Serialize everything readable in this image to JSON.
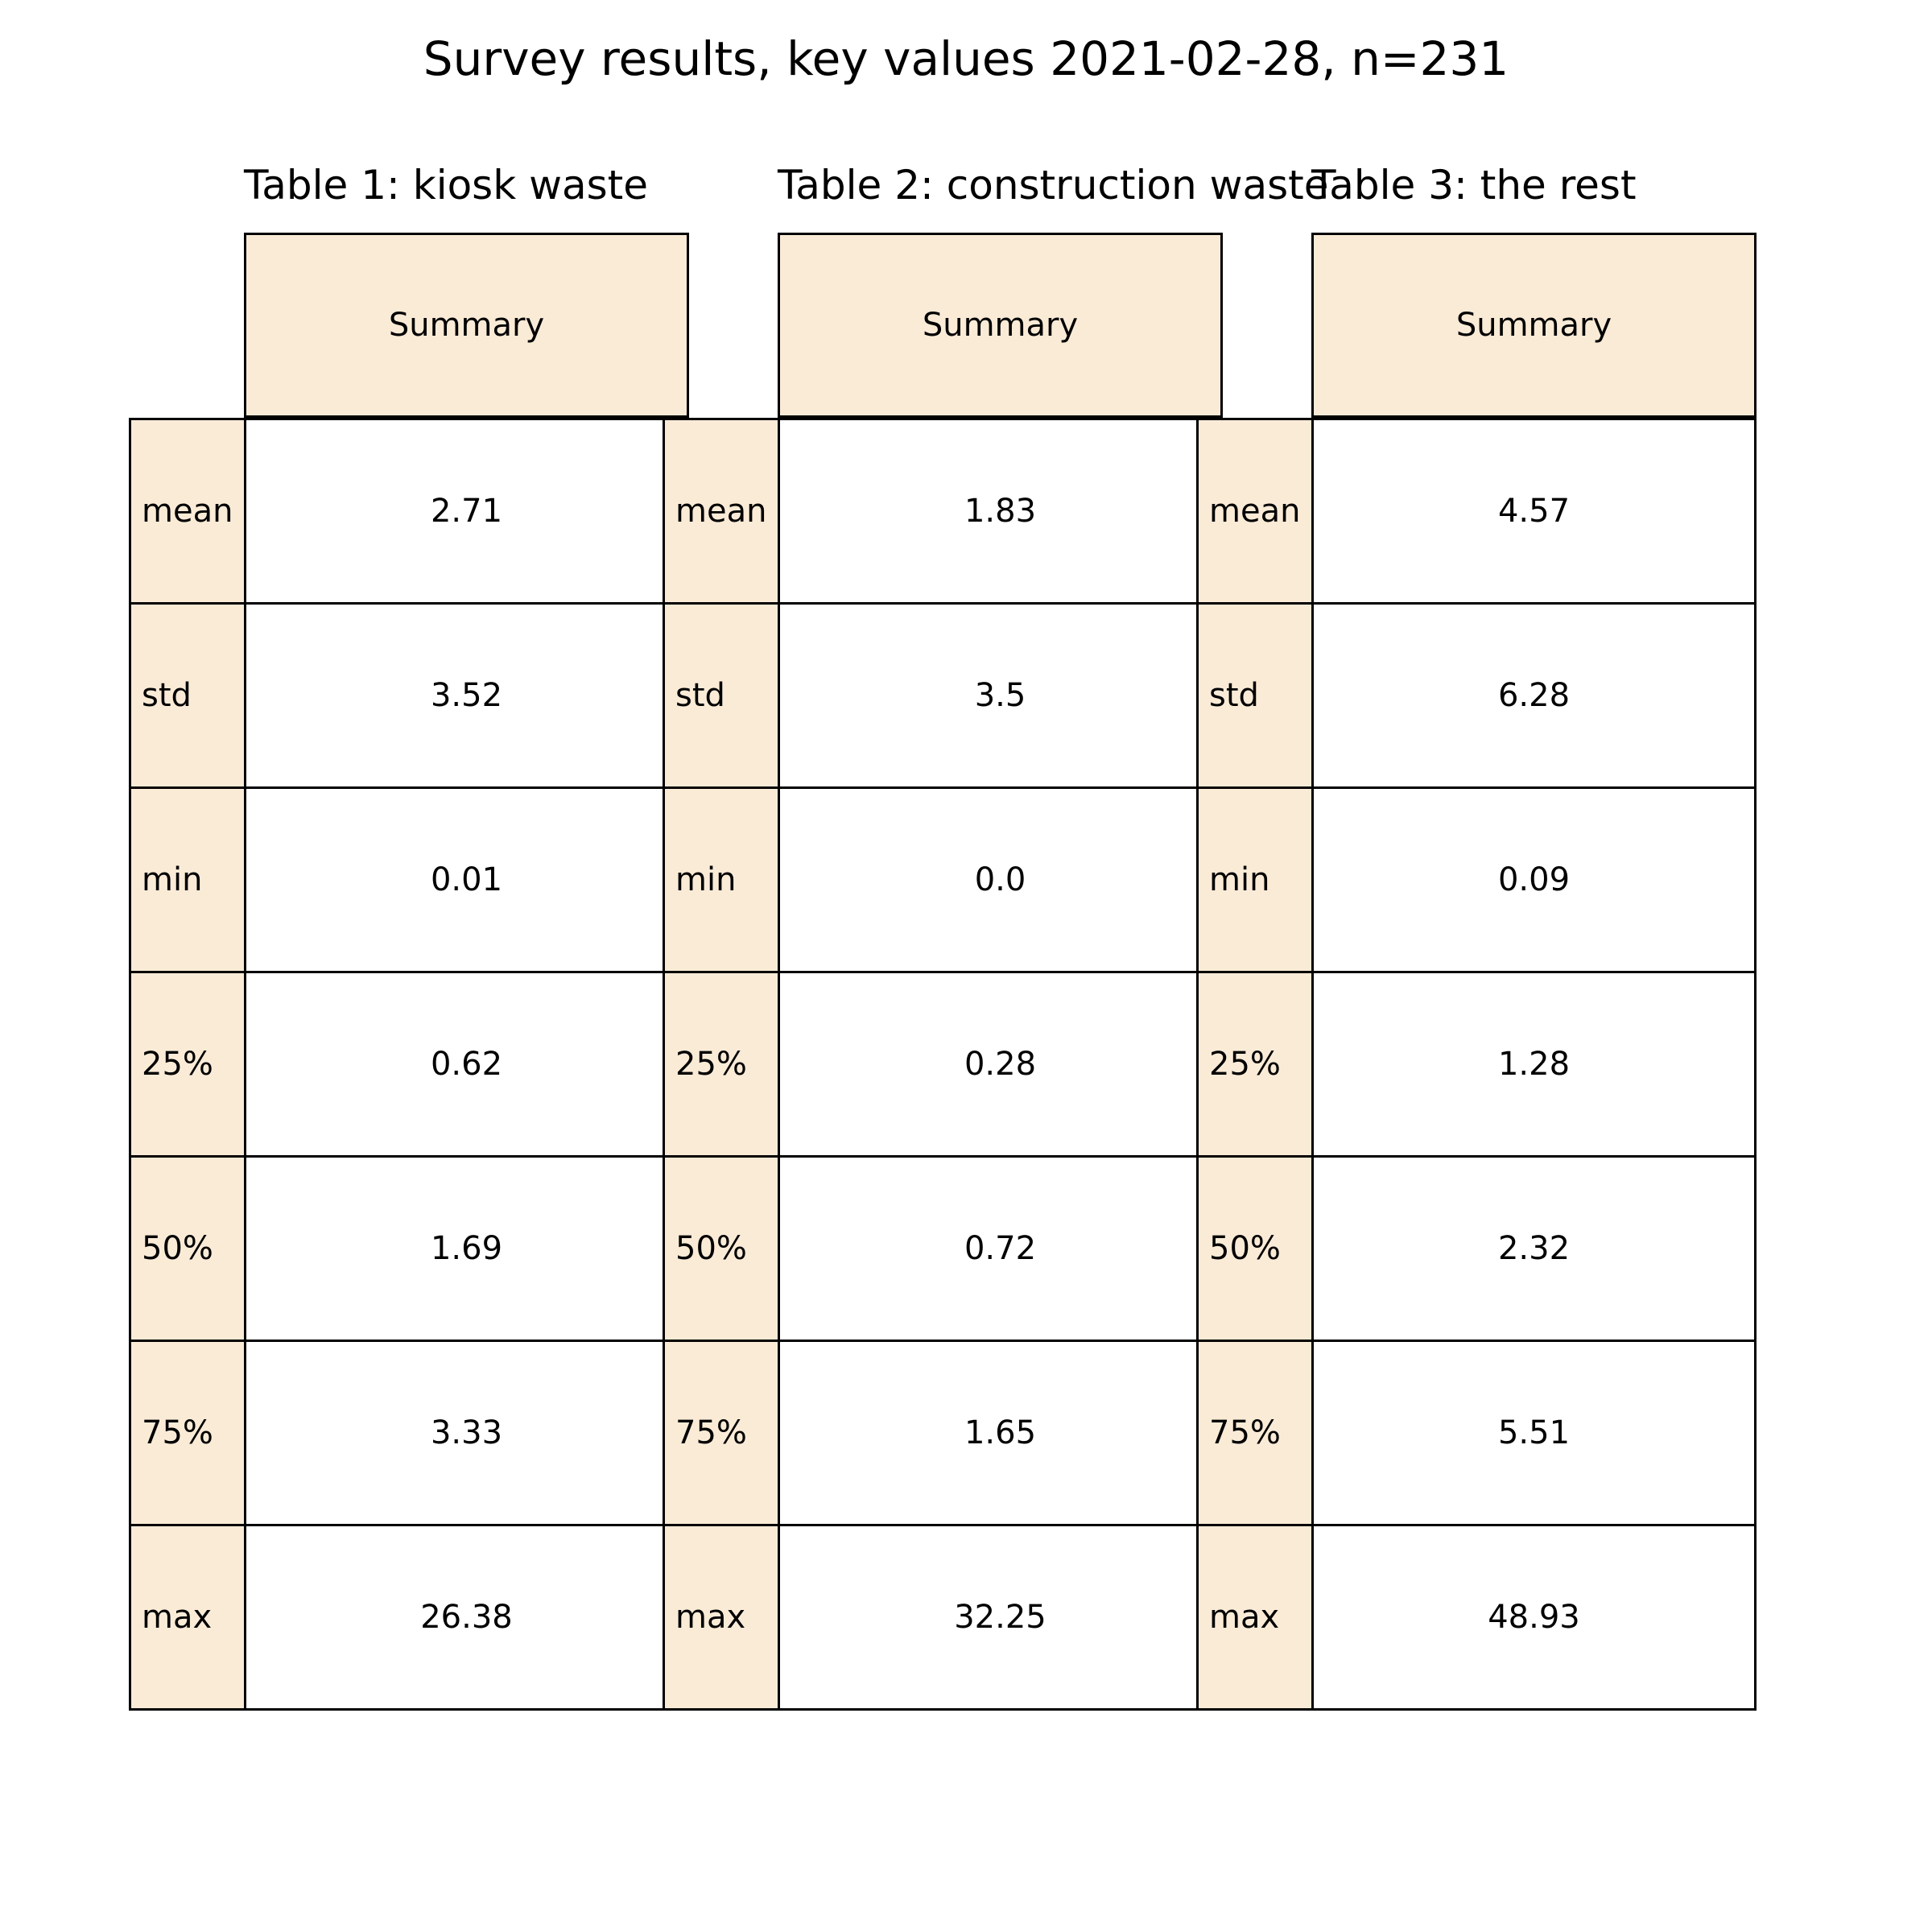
{
  "title": "Survey results, key values 2021-02-28, n=231",
  "colors": {
    "header_fill": "#FAEBD7",
    "cell_fill": "#FFFFFF",
    "border": "#000000"
  },
  "chart_data": [
    {
      "type": "table",
      "title": "Table 1: kiosk waste",
      "column_header": "Summary",
      "row_labels": [
        "mean",
        "std",
        "min",
        "25%",
        "50%",
        "75%",
        "max"
      ],
      "values": [
        "2.71",
        "3.52",
        "0.01",
        "0.62",
        "1.69",
        "3.33",
        "26.38"
      ]
    },
    {
      "type": "table",
      "title": "Table 2: construction waste",
      "column_header": "Summary",
      "row_labels": [
        "mean",
        "std",
        "min",
        "25%",
        "50%",
        "75%",
        "max"
      ],
      "values": [
        "1.83",
        "3.5",
        "0.0",
        "0.28",
        "0.72",
        "1.65",
        "32.25"
      ]
    },
    {
      "type": "table",
      "title": "Table 3: the rest",
      "column_header": "Summary",
      "row_labels": [
        "mean",
        "std",
        "min",
        "25%",
        "50%",
        "75%",
        "max"
      ],
      "values": [
        "4.57",
        "6.28",
        "0.09",
        "1.28",
        "2.32",
        "5.51",
        "48.93"
      ]
    }
  ]
}
